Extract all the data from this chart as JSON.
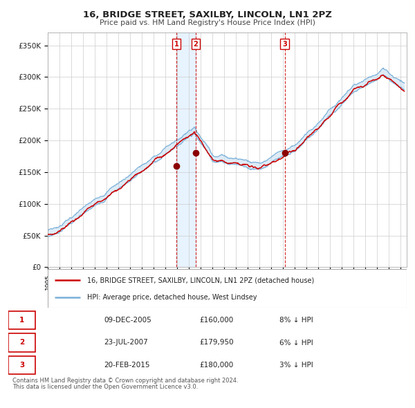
{
  "title": "16, BRIDGE STREET, SAXILBY, LINCOLN, LN1 2PZ",
  "subtitle": "Price paid vs. HM Land Registry's House Price Index (HPI)",
  "ylim": [
    0,
    370000
  ],
  "yticks": [
    0,
    50000,
    100000,
    150000,
    200000,
    250000,
    300000,
    350000
  ],
  "ytick_labels": [
    "£0",
    "£50K",
    "£100K",
    "£150K",
    "£200K",
    "£250K",
    "£300K",
    "£350K"
  ],
  "xlim_start": 1995.0,
  "xlim_end": 2025.5,
  "hpi_fill_color": "#c8dff0",
  "hpi_line_color": "#7ab0d8",
  "price_color": "#cc0000",
  "background_color": "#ffffff",
  "grid_color": "#cccccc",
  "sale_dates_num": [
    2005.94,
    2007.56,
    2015.13
  ],
  "sale_prices": [
    160000,
    179950,
    180000
  ],
  "sale_labels": [
    "1",
    "2",
    "3"
  ],
  "vline_dates": [
    2005.94,
    2007.56,
    2015.13
  ],
  "legend_line1": "16, BRIDGE STREET, SAXILBY, LINCOLN, LN1 2PZ (detached house)",
  "legend_line2": "HPI: Average price, detached house, West Lindsey",
  "table_data": [
    [
      "1",
      "09-DEC-2005",
      "£160,000",
      "8% ↓ HPI"
    ],
    [
      "2",
      "23-JUL-2007",
      "£179,950",
      "6% ↓ HPI"
    ],
    [
      "3",
      "20-FEB-2015",
      "£180,000",
      "3% ↓ HPI"
    ]
  ],
  "footnote1": "Contains HM Land Registry data © Crown copyright and database right 2024.",
  "footnote2": "This data is licensed under the Open Government Licence v3.0."
}
